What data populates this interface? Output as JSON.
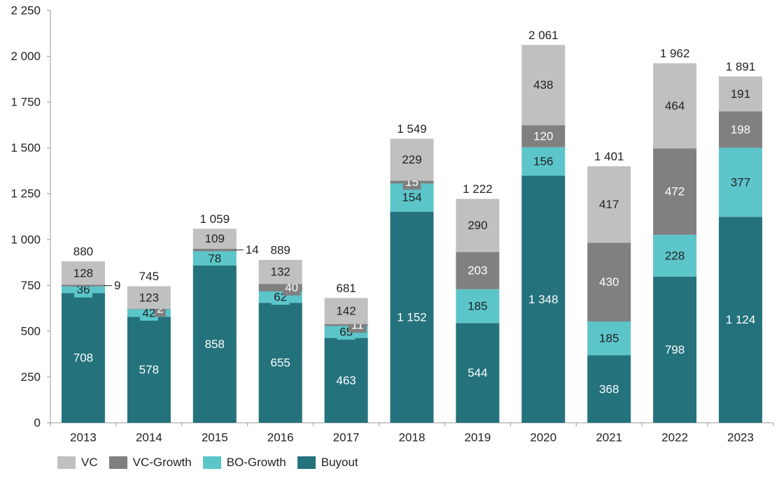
{
  "chart_data": {
    "type": "bar",
    "stacked": true,
    "categories": [
      "2013",
      "2014",
      "2015",
      "2016",
      "2017",
      "2018",
      "2019",
      "2020",
      "2021",
      "2022",
      "2023"
    ],
    "series": [
      {
        "name": "Buyout",
        "color": "#23727c",
        "values": [
          708,
          578,
          858,
          655,
          463,
          1152,
          544,
          1348,
          368,
          798,
          1124
        ]
      },
      {
        "name": "BO-Growth",
        "color": "#5bc5ca",
        "values": [
          36,
          42,
          78,
          62,
          65,
          154,
          185,
          156,
          185,
          228,
          377
        ]
      },
      {
        "name": "VC-Growth",
        "color": "#808080",
        "values": [
          9,
          2,
          14,
          40,
          11,
          15,
          203,
          120,
          430,
          472,
          198
        ]
      },
      {
        "name": "VC",
        "color": "#c0c0c0",
        "values": [
          128,
          123,
          109,
          132,
          142,
          229,
          290,
          438,
          417,
          464,
          191
        ]
      }
    ],
    "totals": [
      "880",
      "745",
      "1 059",
      "889",
      "681",
      "1 549",
      "1 222",
      "2 061",
      "1 401",
      "1 962",
      "1 891"
    ],
    "value_labels": {
      "Buyout": [
        "708",
        "578",
        "858",
        "655",
        "463",
        "1 152",
        "544",
        "1 348",
        "368",
        "798",
        "1 124"
      ],
      "BO-Growth": [
        "36",
        "42",
        "78",
        "62",
        "65",
        "154",
        "185",
        "156",
        "185",
        "228",
        "377"
      ],
      "VC-Growth": [
        "9",
        "2",
        "14",
        "40",
        "11",
        "15",
        "203",
        "120",
        "430",
        "472",
        "198"
      ],
      "VC": [
        "128",
        "123",
        "109",
        "132",
        "142",
        "229",
        "290",
        "438",
        "417",
        "464",
        "191"
      ]
    },
    "ylim": [
      0,
      2250
    ],
    "yticks": [
      "0",
      "250",
      "500",
      "750",
      "1 000",
      "1 250",
      "1 500",
      "1 750",
      "2 000",
      "2 250"
    ],
    "ytick_values": [
      0,
      250,
      500,
      750,
      1000,
      1250,
      1500,
      1750,
      2000,
      2250
    ],
    "grid": false,
    "legend_position": "bottom-left"
  }
}
